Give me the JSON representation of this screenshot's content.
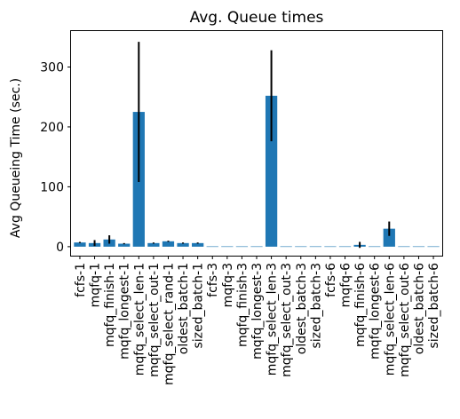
{
  "chart_data": {
    "type": "bar",
    "title": "Avg. Queue times",
    "xlabel": "",
    "ylabel": "Avg Queueing Time (sec.)",
    "ylim": [
      -15,
      360
    ],
    "yticks": [
      0,
      100,
      200,
      300
    ],
    "grid": false,
    "bar_color": "#1f77b4",
    "error_color": "#000000",
    "categories": [
      "fcfs-1",
      "mqfq-1",
      "mqfq_finish-1",
      "mqfq_longest-1",
      "mqfq_select_len-1",
      "mqfq_select_out-1",
      "mqfq_select_rand-1",
      "oldest_batch-1",
      "sized_batch-1",
      "fcfs-3",
      "mqfq-3",
      "mqfq_finish-3",
      "mqfq_longest-3",
      "mqfq_select_len-3",
      "mqfq_select_out-3",
      "oldest_batch-3",
      "sized_batch-3",
      "fcfs-6",
      "mqfq-6",
      "mqfq_finish-6",
      "mqfq_longest-6",
      "mqfq_select_len-6",
      "mqfq_select_out-6",
      "oldest_batch-6",
      "sized_batch-6"
    ],
    "values": [
      7,
      6,
      12,
      5,
      225,
      6,
      9,
      6,
      6,
      0.5,
      0.5,
      0.5,
      0.5,
      252,
      0.5,
      0.5,
      0.5,
      0.5,
      0.5,
      3,
      0.5,
      30,
      0.5,
      0.5,
      0.5
    ],
    "errors": [
      1,
      5,
      7,
      1,
      117,
      1,
      1,
      1,
      1,
      0,
      0,
      0,
      0,
      76,
      0,
      0,
      0,
      0,
      0,
      5,
      0,
      12,
      0,
      0,
      0
    ]
  }
}
